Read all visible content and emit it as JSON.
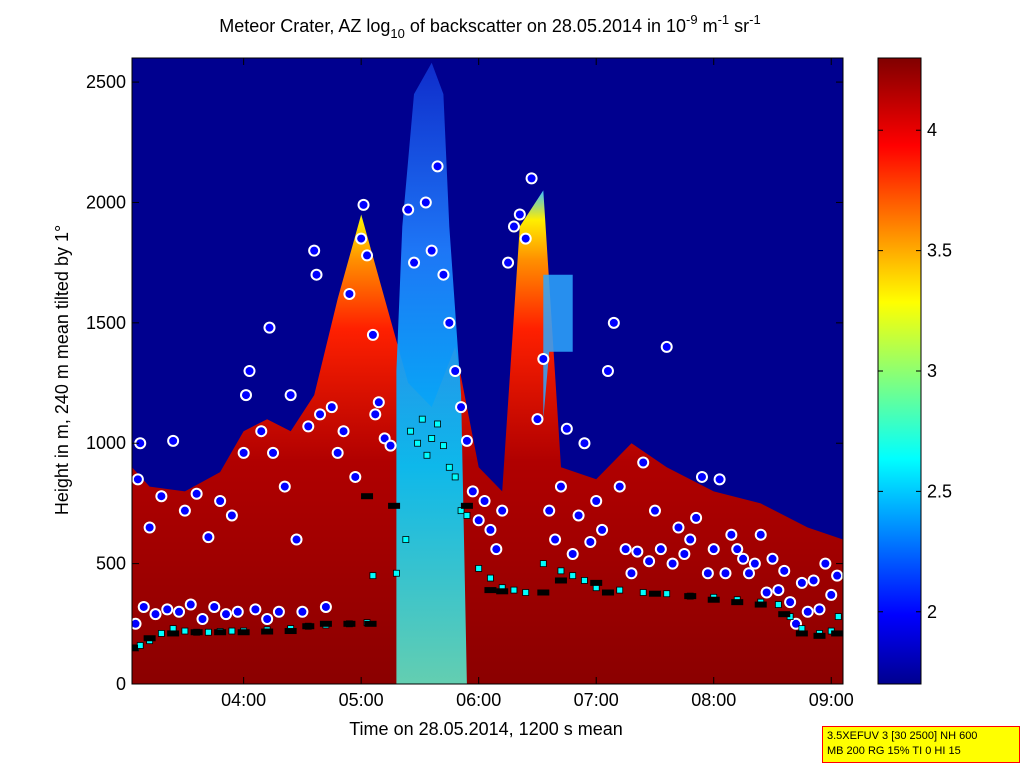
{
  "chart_data": {
    "type": "heatmap",
    "title": {
      "prefix": "Meteor Crater, AZ log",
      "sub": "10",
      "middle": " of backscatter on 28.05.2014 in 10",
      "sup1": "-9",
      "unit1": " m",
      "sup2": "-1",
      "unit2": " sr",
      "sup3": "-1"
    },
    "xlabel": "Time on 28.05.2014, 1200 s mean",
    "ylabel": "Height in m, 240 m mean tilted by 1°",
    "xlim_hours": [
      3.05,
      9.1
    ],
    "ylim": [
      0,
      2600
    ],
    "x_ticks": [
      {
        "value": 4,
        "label": "04:00"
      },
      {
        "value": 5,
        "label": "05:00"
      },
      {
        "value": 6,
        "label": "06:00"
      },
      {
        "value": 7,
        "label": "07:00"
      },
      {
        "value": 8,
        "label": "08:00"
      },
      {
        "value": 9,
        "label": "09:00"
      }
    ],
    "y_ticks": [
      0,
      500,
      1000,
      1500,
      2000,
      2500
    ],
    "colorbar": {
      "range": [
        1.7,
        4.3
      ],
      "ticks": [
        "2",
        "2.5",
        "3",
        "3.5",
        "4"
      ],
      "colormap": "jet"
    },
    "background_color": "#00008f",
    "layer_top_profile": {
      "description": "upper edge of the high-backscatter (red) region, height in m",
      "points": [
        [
          3.05,
          900
        ],
        [
          3.2,
          820
        ],
        [
          3.5,
          800
        ],
        [
          3.8,
          880
        ],
        [
          4.0,
          1050
        ],
        [
          4.2,
          1100
        ],
        [
          4.4,
          1050
        ],
        [
          4.6,
          1200
        ],
        [
          4.8,
          1600
        ],
        [
          5.0,
          1950
        ],
        [
          5.2,
          1600
        ],
        [
          5.4,
          1250
        ],
        [
          5.6,
          1150
        ],
        [
          5.8,
          1400
        ],
        [
          6.0,
          900
        ],
        [
          6.2,
          800
        ],
        [
          6.35,
          1900
        ],
        [
          6.55,
          2050
        ],
        [
          6.7,
          900
        ],
        [
          7.0,
          850
        ],
        [
          7.3,
          1000
        ],
        [
          7.6,
          900
        ],
        [
          8.0,
          800
        ],
        [
          8.4,
          750
        ],
        [
          8.8,
          650
        ],
        [
          9.1,
          600
        ]
      ]
    },
    "series": [
      {
        "name": "",
        "marker": "circle",
        "color": "#0000ff",
        "points": [
          [
            3.08,
            250
          ],
          [
            3.1,
            850
          ],
          [
            3.12,
            1000
          ],
          [
            3.15,
            320
          ],
          [
            3.2,
            650
          ],
          [
            3.25,
            290
          ],
          [
            3.3,
            780
          ],
          [
            3.35,
            310
          ],
          [
            3.4,
            1010
          ],
          [
            3.45,
            300
          ],
          [
            3.5,
            720
          ],
          [
            3.55,
            330
          ],
          [
            3.6,
            790
          ],
          [
            3.65,
            270
          ],
          [
            3.7,
            610
          ],
          [
            3.75,
            320
          ],
          [
            3.8,
            760
          ],
          [
            3.85,
            290
          ],
          [
            3.9,
            700
          ],
          [
            3.95,
            300
          ],
          [
            4.0,
            960
          ],
          [
            4.02,
            1200
          ],
          [
            4.05,
            1300
          ],
          [
            4.1,
            310
          ],
          [
            4.15,
            1050
          ],
          [
            4.2,
            270
          ],
          [
            4.22,
            1480
          ],
          [
            4.25,
            960
          ],
          [
            4.3,
            300
          ],
          [
            4.35,
            820
          ],
          [
            4.4,
            1200
          ],
          [
            4.45,
            600
          ],
          [
            4.5,
            300
          ],
          [
            4.55,
            1070
          ],
          [
            4.6,
            1800
          ],
          [
            4.62,
            1700
          ],
          [
            4.65,
            1120
          ],
          [
            4.7,
            320
          ],
          [
            4.75,
            1150
          ],
          [
            4.8,
            960
          ],
          [
            4.85,
            1050
          ],
          [
            4.9,
            1620
          ],
          [
            4.95,
            860
          ],
          [
            5.0,
            1850
          ],
          [
            5.02,
            1990
          ],
          [
            5.05,
            1780
          ],
          [
            5.1,
            1450
          ],
          [
            5.12,
            1120
          ],
          [
            5.15,
            1170
          ],
          [
            5.2,
            1020
          ],
          [
            5.25,
            990
          ],
          [
            5.4,
            1970
          ],
          [
            5.45,
            1750
          ],
          [
            5.55,
            2000
          ],
          [
            5.6,
            1800
          ],
          [
            5.65,
            2150
          ],
          [
            5.7,
            1700
          ],
          [
            5.75,
            1500
          ],
          [
            5.8,
            1300
          ],
          [
            5.85,
            1150
          ],
          [
            5.9,
            1010
          ],
          [
            5.95,
            800
          ],
          [
            6.0,
            680
          ],
          [
            6.05,
            760
          ],
          [
            6.1,
            640
          ],
          [
            6.15,
            560
          ],
          [
            6.2,
            720
          ],
          [
            6.25,
            1750
          ],
          [
            6.3,
            1900
          ],
          [
            6.35,
            1950
          ],
          [
            6.4,
            1850
          ],
          [
            6.45,
            2100
          ],
          [
            6.5,
            1100
          ],
          [
            6.55,
            1350
          ],
          [
            6.6,
            720
          ],
          [
            6.65,
            600
          ],
          [
            6.7,
            820
          ],
          [
            6.75,
            1060
          ],
          [
            6.8,
            540
          ],
          [
            6.85,
            700
          ],
          [
            6.9,
            1000
          ],
          [
            6.95,
            590
          ],
          [
            7.0,
            760
          ],
          [
            7.05,
            640
          ],
          [
            7.1,
            1300
          ],
          [
            7.15,
            1500
          ],
          [
            7.2,
            820
          ],
          [
            7.25,
            560
          ],
          [
            7.3,
            460
          ],
          [
            7.35,
            550
          ],
          [
            7.4,
            920
          ],
          [
            7.45,
            510
          ],
          [
            7.5,
            720
          ],
          [
            7.55,
            560
          ],
          [
            7.6,
            1400
          ],
          [
            7.65,
            500
          ],
          [
            7.7,
            650
          ],
          [
            7.75,
            540
          ],
          [
            7.8,
            600
          ],
          [
            7.85,
            690
          ],
          [
            7.9,
            860
          ],
          [
            7.95,
            460
          ],
          [
            8.0,
            560
          ],
          [
            8.05,
            850
          ],
          [
            8.1,
            460
          ],
          [
            8.15,
            620
          ],
          [
            8.2,
            560
          ],
          [
            8.25,
            520
          ],
          [
            8.3,
            460
          ],
          [
            8.35,
            500
          ],
          [
            8.4,
            620
          ],
          [
            8.45,
            380
          ],
          [
            8.5,
            520
          ],
          [
            8.55,
            390
          ],
          [
            8.6,
            470
          ],
          [
            8.65,
            340
          ],
          [
            8.7,
            250
          ],
          [
            8.75,
            420
          ],
          [
            8.8,
            300
          ],
          [
            8.85,
            430
          ],
          [
            8.9,
            310
          ],
          [
            8.95,
            500
          ],
          [
            9.0,
            370
          ],
          [
            9.05,
            450
          ]
        ]
      },
      {
        "name": "",
        "marker": "square",
        "color": "#00ffff",
        "points": [
          [
            3.08,
            150
          ],
          [
            3.12,
            160
          ],
          [
            3.2,
            180
          ],
          [
            3.3,
            210
          ],
          [
            3.4,
            230
          ],
          [
            3.5,
            220
          ],
          [
            3.6,
            215
          ],
          [
            3.7,
            215
          ],
          [
            3.8,
            218
          ],
          [
            3.9,
            220
          ],
          [
            4.0,
            220
          ],
          [
            4.2,
            225
          ],
          [
            4.4,
            230
          ],
          [
            4.55,
            240
          ],
          [
            4.7,
            245
          ],
          [
            4.9,
            250
          ],
          [
            5.05,
            255
          ],
          [
            5.1,
            450
          ],
          [
            5.3,
            460
          ],
          [
            5.38,
            600
          ],
          [
            5.42,
            1050
          ],
          [
            5.48,
            1000
          ],
          [
            5.52,
            1100
          ],
          [
            5.56,
            950
          ],
          [
            5.6,
            1020
          ],
          [
            5.65,
            1080
          ],
          [
            5.7,
            990
          ],
          [
            5.75,
            900
          ],
          [
            5.8,
            860
          ],
          [
            5.85,
            720
          ],
          [
            5.9,
            700
          ],
          [
            6.0,
            480
          ],
          [
            6.1,
            440
          ],
          [
            6.2,
            400
          ],
          [
            6.3,
            390
          ],
          [
            6.4,
            380
          ],
          [
            6.55,
            500
          ],
          [
            6.7,
            470
          ],
          [
            6.8,
            450
          ],
          [
            6.9,
            430
          ],
          [
            7.0,
            400
          ],
          [
            7.2,
            390
          ],
          [
            7.4,
            380
          ],
          [
            7.6,
            375
          ],
          [
            7.8,
            365
          ],
          [
            8.0,
            360
          ],
          [
            8.2,
            350
          ],
          [
            8.4,
            340
          ],
          [
            8.55,
            330
          ],
          [
            8.65,
            280
          ],
          [
            8.75,
            230
          ],
          [
            8.9,
            210
          ],
          [
            9.0,
            220
          ],
          [
            9.06,
            280
          ]
        ]
      },
      {
        "name": "",
        "marker": "dash",
        "color": "#000000",
        "points": [
          [
            3.05,
            150
          ],
          [
            3.2,
            190
          ],
          [
            3.4,
            210
          ],
          [
            3.6,
            215
          ],
          [
            3.8,
            215
          ],
          [
            4.0,
            215
          ],
          [
            4.2,
            218
          ],
          [
            4.4,
            220
          ],
          [
            4.55,
            240
          ],
          [
            4.7,
            250
          ],
          [
            4.9,
            250
          ],
          [
            5.08,
            250
          ],
          [
            5.05,
            780
          ],
          [
            5.28,
            740
          ],
          [
            5.9,
            740
          ],
          [
            6.1,
            390
          ],
          [
            6.2,
            385
          ],
          [
            6.55,
            380
          ],
          [
            6.7,
            430
          ],
          [
            7.0,
            420
          ],
          [
            7.1,
            380
          ],
          [
            7.5,
            375
          ],
          [
            7.8,
            365
          ],
          [
            8.0,
            350
          ],
          [
            8.2,
            340
          ],
          [
            8.4,
            330
          ],
          [
            8.6,
            290
          ],
          [
            8.75,
            210
          ],
          [
            8.9,
            200
          ],
          [
            9.05,
            210
          ]
        ]
      }
    ]
  },
  "info_box": {
    "line1": "3.5XEFUV 3 [30 2500] NH 600",
    "line2": "MB 200 RG 15% TI 0 HI 15"
  }
}
